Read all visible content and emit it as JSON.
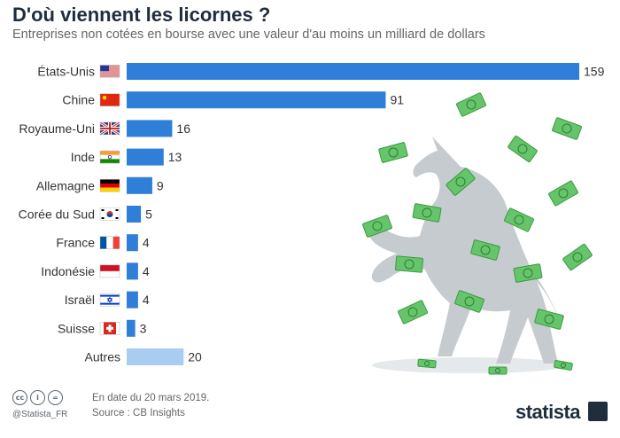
{
  "header": {
    "title": "D'où viennent les licornes ?",
    "subtitle": "Entreprises non cotées en bourse avec une valeur d'au moins un milliard de dollars"
  },
  "chart_data": {
    "type": "bar",
    "orientation": "horizontal",
    "categories": [
      "États-Unis",
      "Chine",
      "Royaume-Uni",
      "Inde",
      "Allemagne",
      "Corée du Sud",
      "France",
      "Indonésie",
      "Israël",
      "Suisse",
      "Autres"
    ],
    "values": [
      159,
      91,
      16,
      13,
      9,
      5,
      4,
      4,
      4,
      3,
      20
    ],
    "value_labels": [
      "159",
      "91",
      "16",
      "13",
      "9",
      "5",
      "4",
      "4",
      "4",
      "3",
      "20"
    ],
    "flags": [
      "us-flag",
      "cn-flag",
      "uk-flag",
      "in-flag",
      "de-flag",
      "kr-flag",
      "fr-flag",
      "id-flag",
      "il-flag",
      "ch-flag",
      ""
    ],
    "bar_colors": [
      "#2f7ed8",
      "#2f7ed8",
      "#2f7ed8",
      "#2f7ed8",
      "#2f7ed8",
      "#2f7ed8",
      "#2f7ed8",
      "#2f7ed8",
      "#2f7ed8",
      "#2f7ed8",
      "#a9cdf1"
    ],
    "xlim": [
      0,
      159
    ],
    "grid": false,
    "legend": "none"
  },
  "illustration": {
    "icon": "unicorn-icon",
    "money_icon": "banknote-icon",
    "colors": {
      "unicorn": "#c5cbcf",
      "money": "#66c46a"
    }
  },
  "footer": {
    "license_icons": [
      "cc-icon",
      "by-icon",
      "nd-icon"
    ],
    "license_labels": [
      "cc",
      "i",
      "="
    ],
    "handle": "@Statista_FR",
    "date_note": "En date du 20 mars 2019.",
    "source": "Source : CB Insights",
    "brand": "statista"
  }
}
